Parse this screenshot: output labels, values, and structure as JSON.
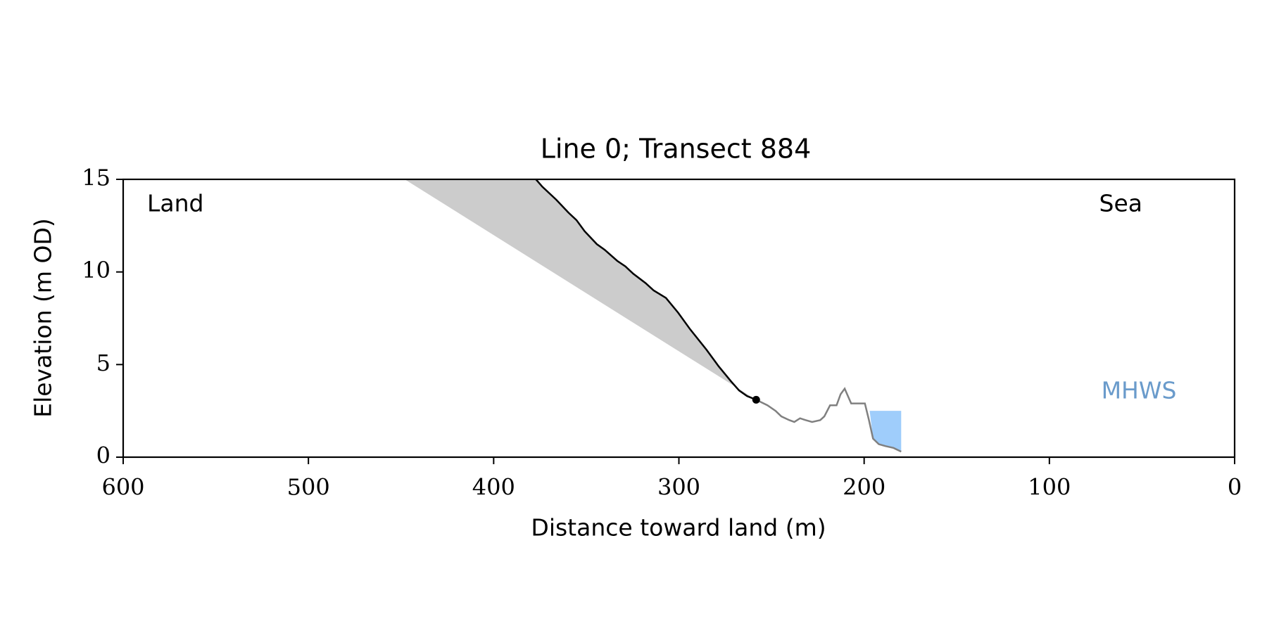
{
  "chart_data": {
    "type": "line",
    "title": "Line 0; Transect 884",
    "xlabel": "Distance toward land (m)",
    "ylabel": "Elevation (m OD)",
    "xlim": [
      600,
      0
    ],
    "xticks": [
      600,
      500,
      400,
      300,
      200,
      100,
      0
    ],
    "ylim": [
      0,
      15
    ],
    "yticks": [
      0,
      5,
      10,
      15
    ],
    "annotations": {
      "land": "Land",
      "sea": "Sea",
      "mhws": "MHWS"
    },
    "mhws_color": "#6a9bcb",
    "mhws_fill": "#9fcdfb",
    "mhws_level": 2.5,
    "mhws_x": [
      197,
      180
    ],
    "shade_color": "#cccccc",
    "shade_x": [
      448,
      258.3
    ],
    "shade_y": [
      15,
      3.1
    ],
    "series": [
      {
        "color": "#000000",
        "x": [
          377.2,
          373.7,
          366.2,
          359.6,
          355.3,
          350.9,
          344.3,
          340.1,
          333.3,
          328.9,
          324.6,
          318.0,
          313.6,
          307.0,
          300.4,
          293.9,
          285.1,
          278.5,
          271.9,
          267.5,
          263.2,
          258.3
        ],
        "y": [
          15,
          14.6,
          13.9,
          13.2,
          12.8,
          12.2,
          11.5,
          11.2,
          10.6,
          10.3,
          9.9,
          9.4,
          9.0,
          8.6,
          7.8,
          6.9,
          5.8,
          4.9,
          4.1,
          3.6,
          3.3,
          3.1
        ]
      },
      {
        "color": "#808080",
        "x": [
          258.3,
          252.2,
          247.8,
          244.7,
          240.4,
          237.7,
          234.6,
          231.6,
          228.1,
          223.7,
          221.5,
          218.4,
          214.9,
          212.7,
          210.5,
          207.0,
          201.8,
          199.6,
          197.4,
          195.2,
          192.1,
          188.6,
          184.2,
          180.0
        ],
        "y": [
          3.1,
          2.8,
          2.5,
          2.2,
          2.0,
          1.9,
          2.1,
          2.0,
          1.9,
          2.0,
          2.2,
          2.8,
          2.8,
          3.4,
          3.7,
          2.9,
          2.9,
          2.9,
          2.0,
          1.0,
          0.7,
          0.6,
          0.5,
          0.3
        ]
      }
    ],
    "marker": {
      "x": 258.3,
      "y": 3.1,
      "color": "#000000"
    }
  }
}
